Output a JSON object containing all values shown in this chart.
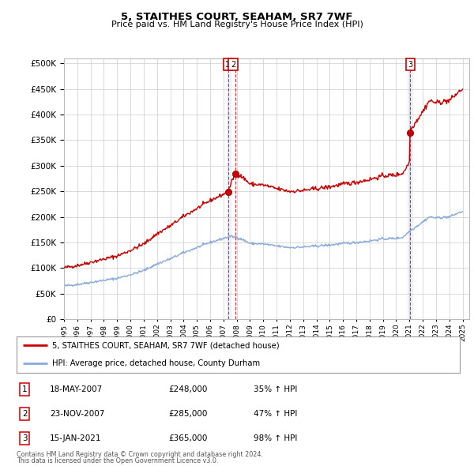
{
  "title": "5, STAITHES COURT, SEAHAM, SR7 7WF",
  "subtitle": "Price paid vs. HM Land Registry's House Price Index (HPI)",
  "legend_property": "5, STAITHES COURT, SEAHAM, SR7 7WF (detached house)",
  "legend_hpi": "HPI: Average price, detached house, County Durham",
  "footer_line1": "Contains HM Land Registry data © Crown copyright and database right 2024.",
  "footer_line2": "This data is licensed under the Open Government Licence v3.0.",
  "transactions": [
    {
      "label": "1",
      "date": "18-MAY-2007",
      "price": 248000,
      "pct": "35%",
      "direction": "↑"
    },
    {
      "label": "2",
      "date": "23-NOV-2007",
      "price": 285000,
      "pct": "47%",
      "direction": "↑"
    },
    {
      "label": "3",
      "date": "15-JAN-2021",
      "price": 365000,
      "pct": "98%",
      "direction": "↑"
    }
  ],
  "property_color": "#cc0000",
  "hpi_color": "#88aadd",
  "vline_color": "#cc0000",
  "marker_color": "#cc0000",
  "yticks": [
    0,
    50000,
    100000,
    150000,
    200000,
    250000,
    300000,
    350000,
    400000,
    450000,
    500000
  ],
  "background_color": "#ffffff",
  "grid_color": "#cccccc"
}
